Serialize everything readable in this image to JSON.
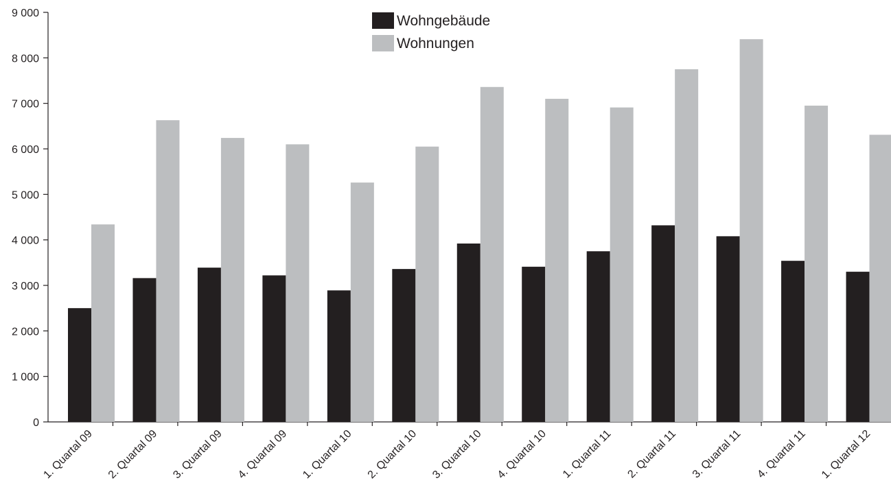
{
  "chart_data": {
    "type": "bar",
    "title": "",
    "xlabel": "",
    "ylabel": "",
    "ylim": [
      0,
      9000
    ],
    "yticks": [
      0,
      1000,
      2000,
      3000,
      4000,
      5000,
      6000,
      7000,
      8000,
      9000
    ],
    "ytick_labels": [
      "0",
      "1 000",
      "2 000",
      "3 000",
      "4 000",
      "5 000",
      "6 000",
      "7 000",
      "8 000",
      "9 000"
    ],
    "grid": false,
    "legend_position": "top-center",
    "categories": [
      "1. Quartal 09",
      "2. Quartal 09",
      "3. Quartal 09",
      "4. Quartal 09",
      "1. Quartal 10",
      "2. Quartal 10",
      "3. Quartal 10",
      "4. Quartal 10",
      "1. Quartal 11",
      "2. Quartal 11",
      "3. Quartal 11",
      "4. Quartal 11",
      "1. Quartal 12"
    ],
    "series": [
      {
        "name": "Wohngebäude",
        "color": "#231f20",
        "values": [
          2500,
          3160,
          3390,
          3220,
          2890,
          3360,
          3920,
          3410,
          3750,
          4320,
          4080,
          3540,
          3300
        ]
      },
      {
        "name": "Wohnungen",
        "color": "#bcbec0",
        "values": [
          4340,
          6630,
          6240,
          6100,
          5260,
          6050,
          7360,
          7100,
          6910,
          7750,
          8410,
          6950,
          6310
        ]
      }
    ]
  }
}
